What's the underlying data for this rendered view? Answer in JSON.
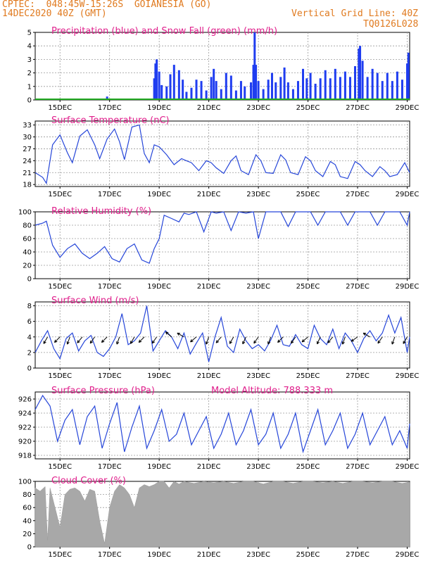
{
  "header": {
    "line1": "CPTEC:  048:45W-15:26S  GOIANESIA (GO)",
    "line2": "14DEC2020 40Z (GMT)",
    "grid_note": "Vertical Grid Line: 40Z",
    "run_id": "TQ0126L028"
  },
  "colors": {
    "header": "#e07a1f",
    "title": "#e0208c",
    "precip": "#1f3df0",
    "snow": "#22aa22",
    "line": "#2646d9",
    "cloud": "#a8a8a8"
  },
  "x_ticks": [
    "15DEC",
    "17DEC",
    "19DEC",
    "21DEC",
    "23DEC",
    "25DEC",
    "27DEC",
    "29DEC"
  ],
  "chart_data": [
    {
      "type": "bar",
      "title": "Precipitation (blue) and Snow Fall (green) (mm/h)",
      "ylim": [
        0,
        5
      ],
      "yticks": [
        0,
        1,
        2,
        3,
        4,
        5
      ],
      "x_start_day": 14.0,
      "x_end_day": 29.1,
      "series": [
        {
          "name": "Precipitation",
          "values": [
            [
              16.9,
              0.25
            ],
            [
              18.8,
              1.6
            ],
            [
              18.85,
              2.7
            ],
            [
              18.9,
              3.0
            ],
            [
              19.0,
              2.1
            ],
            [
              19.1,
              1.1
            ],
            [
              19.3,
              1.0
            ],
            [
              19.45,
              1.9
            ],
            [
              19.6,
              2.6
            ],
            [
              19.8,
              2.2
            ],
            [
              19.95,
              1.5
            ],
            [
              20.1,
              0.6
            ],
            [
              20.3,
              0.9
            ],
            [
              20.5,
              1.5
            ],
            [
              20.7,
              1.4
            ],
            [
              20.9,
              0.7
            ],
            [
              21.1,
              1.7
            ],
            [
              21.2,
              2.3
            ],
            [
              21.3,
              1.4
            ],
            [
              21.5,
              0.8
            ],
            [
              21.7,
              2.0
            ],
            [
              21.9,
              1.8
            ],
            [
              22.1,
              0.7
            ],
            [
              22.3,
              1.4
            ],
            [
              22.45,
              1.0
            ],
            [
              22.7,
              1.3
            ],
            [
              22.8,
              2.6
            ],
            [
              22.85,
              5.0
            ],
            [
              22.9,
              2.6
            ],
            [
              23.0,
              1.4
            ],
            [
              23.2,
              0.8
            ],
            [
              23.4,
              1.5
            ],
            [
              23.55,
              2.0
            ],
            [
              23.7,
              1.3
            ],
            [
              23.9,
              1.7
            ],
            [
              24.05,
              2.4
            ],
            [
              24.2,
              1.3
            ],
            [
              24.4,
              0.8
            ],
            [
              24.6,
              1.4
            ],
            [
              24.8,
              2.3
            ],
            [
              24.95,
              1.6
            ],
            [
              25.1,
              2.0
            ],
            [
              25.3,
              1.2
            ],
            [
              25.5,
              1.6
            ],
            [
              25.7,
              2.2
            ],
            [
              25.9,
              1.6
            ],
            [
              26.1,
              2.3
            ],
            [
              26.3,
              1.7
            ],
            [
              26.5,
              2.1
            ],
            [
              26.7,
              1.7
            ],
            [
              26.9,
              2.5
            ],
            [
              27.05,
              3.8
            ],
            [
              27.1,
              4.0
            ],
            [
              27.2,
              2.9
            ],
            [
              27.4,
              1.7
            ],
            [
              27.6,
              2.3
            ],
            [
              27.8,
              2.0
            ],
            [
              28.0,
              1.4
            ],
            [
              28.2,
              2.0
            ],
            [
              28.4,
              1.4
            ],
            [
              28.6,
              2.1
            ],
            [
              28.8,
              1.5
            ],
            [
              29.0,
              2.7
            ],
            [
              29.05,
              3.5
            ]
          ]
        },
        {
          "name": "Snow Fall",
          "values": [
            [
              14.0,
              0.0
            ],
            [
              29.1,
              0.0
            ]
          ]
        }
      ]
    },
    {
      "type": "line",
      "title": "Surface Temperature (nC)",
      "ylim": [
        17.5,
        34
      ],
      "yticks": [
        18,
        21,
        24,
        27,
        30,
        33
      ],
      "x": [
        14.0,
        14.3,
        14.45,
        14.7,
        15.0,
        15.3,
        15.5,
        15.8,
        16.1,
        16.4,
        16.6,
        16.9,
        17.2,
        17.4,
        17.6,
        17.9,
        18.2,
        18.4,
        18.6,
        18.8,
        19.0,
        19.3,
        19.6,
        19.9,
        20.1,
        20.3,
        20.6,
        20.9,
        21.1,
        21.3,
        21.6,
        21.9,
        22.1,
        22.3,
        22.6,
        22.9,
        23.1,
        23.3,
        23.6,
        23.9,
        24.1,
        24.3,
        24.6,
        24.9,
        25.1,
        25.3,
        25.6,
        25.9,
        26.1,
        26.3,
        26.6,
        26.9,
        27.1,
        27.3,
        27.6,
        27.9,
        28.1,
        28.3,
        28.6,
        28.9,
        29.1
      ],
      "values": [
        21.0,
        19.8,
        18.3,
        28.0,
        30.5,
        26.0,
        23.5,
        30.2,
        31.8,
        28.0,
        24.5,
        29.5,
        32.0,
        28.8,
        24.3,
        32.5,
        33.0,
        25.8,
        23.5,
        28.0,
        27.5,
        25.5,
        23.0,
        24.5,
        24.0,
        23.5,
        21.5,
        24.0,
        23.5,
        22.2,
        20.8,
        24.0,
        25.2,
        21.5,
        20.5,
        25.5,
        24.0,
        21.0,
        20.8,
        25.5,
        24.2,
        21.0,
        20.5,
        25.0,
        24.0,
        21.5,
        20.0,
        23.8,
        23.0,
        20.0,
        19.5,
        23.8,
        23.0,
        21.5,
        20.0,
        22.5,
        21.5,
        20.0,
        20.5,
        23.5,
        21.0
      ]
    },
    {
      "type": "line",
      "title": "Relative Humidity (%)",
      "ylim": [
        0,
        100
      ],
      "yticks": [
        0,
        20,
        40,
        60,
        80,
        100
      ],
      "x": [
        14.0,
        14.3,
        14.45,
        14.7,
        15.0,
        15.3,
        15.6,
        15.9,
        16.2,
        16.5,
        16.8,
        17.1,
        17.4,
        17.7,
        18.0,
        18.3,
        18.6,
        18.8,
        19.0,
        19.2,
        19.5,
        19.8,
        20.0,
        20.2,
        20.5,
        20.8,
        21.1,
        21.3,
        21.6,
        21.9,
        22.2,
        22.5,
        22.8,
        23.0,
        23.3,
        23.6,
        23.9,
        24.2,
        24.5,
        24.8,
        25.1,
        25.4,
        25.7,
        26.0,
        26.3,
        26.6,
        26.9,
        27.2,
        27.5,
        27.8,
        28.1,
        28.4,
        28.7,
        29.0,
        29.1
      ],
      "values": [
        80,
        83,
        86,
        50,
        32,
        45,
        52,
        38,
        30,
        38,
        48,
        30,
        25,
        45,
        52,
        28,
        23,
        45,
        60,
        95,
        90,
        85,
        98,
        96,
        100,
        70,
        100,
        98,
        100,
        72,
        100,
        98,
        100,
        60,
        100,
        100,
        100,
        78,
        100,
        100,
        100,
        80,
        100,
        100,
        100,
        80,
        100,
        100,
        100,
        80,
        100,
        100,
        100,
        80,
        100
      ]
    },
    {
      "type": "line",
      "title": "Surface Wind (m/s)",
      "ylim": [
        0,
        8.5
      ],
      "yticks": [
        0,
        2,
        4,
        6,
        8
      ],
      "x": [
        14.0,
        14.25,
        14.5,
        14.75,
        15.0,
        15.25,
        15.5,
        15.75,
        16.0,
        16.25,
        16.5,
        16.75,
        17.0,
        17.25,
        17.5,
        17.75,
        18.0,
        18.25,
        18.5,
        18.75,
        19.0,
        19.25,
        19.5,
        19.75,
        20.0,
        20.25,
        20.5,
        20.75,
        21.0,
        21.25,
        21.5,
        21.75,
        22.0,
        22.25,
        22.5,
        22.75,
        23.0,
        23.25,
        23.5,
        23.75,
        24.0,
        24.25,
        24.5,
        24.75,
        25.0,
        25.25,
        25.5,
        25.75,
        26.0,
        26.25,
        26.5,
        26.75,
        27.0,
        27.25,
        27.5,
        27.75,
        28.0,
        28.25,
        28.5,
        28.75,
        29.0,
        29.1
      ],
      "values": [
        2.0,
        3.5,
        4.8,
        2.5,
        1.2,
        3.8,
        4.5,
        2.2,
        3.5,
        4.2,
        2.0,
        1.5,
        2.5,
        4.0,
        7.0,
        3.0,
        3.5,
        4.5,
        8.0,
        2.2,
        3.5,
        4.8,
        4.0,
        2.5,
        4.5,
        1.8,
        3.2,
        4.5,
        0.8,
        4.0,
        6.5,
        2.8,
        2.0,
        5.0,
        3.5,
        2.5,
        3.0,
        2.2,
        3.6,
        5.5,
        3.0,
        2.8,
        4.3,
        3.0,
        2.5,
        5.5,
        3.8,
        3.0,
        5.0,
        2.5,
        4.5,
        3.5,
        2.0,
        3.8,
        4.8,
        3.5,
        4.5,
        6.8,
        4.5,
        6.5,
        2.0,
        4.0
      ],
      "arrows": [
        [
          14.5,
          210
        ],
        [
          15.0,
          225
        ],
        [
          15.4,
          200
        ],
        [
          15.9,
          220
        ],
        [
          16.4,
          215
        ],
        [
          16.9,
          225
        ],
        [
          17.4,
          200
        ],
        [
          18.0,
          210
        ],
        [
          18.4,
          225
        ],
        [
          18.9,
          215
        ],
        [
          19.5,
          310
        ],
        [
          20.0,
          300
        ],
        [
          20.5,
          230
        ],
        [
          21.0,
          200
        ],
        [
          21.5,
          220
        ],
        [
          22.0,
          210
        ],
        [
          22.5,
          205
        ],
        [
          23.0,
          215
        ],
        [
          23.5,
          200
        ],
        [
          24.0,
          225
        ],
        [
          24.5,
          215
        ],
        [
          25.0,
          230
        ],
        [
          25.5,
          205
        ],
        [
          26.0,
          220
        ],
        [
          26.5,
          200
        ],
        [
          27.0,
          235
        ],
        [
          27.5,
          300
        ],
        [
          28.0,
          215
        ],
        [
          28.5,
          200
        ],
        [
          29.0,
          210
        ]
      ]
    },
    {
      "type": "line",
      "title": "Surface Pressure (hPa)",
      "annotation": "Model Altitude: 788.333 m",
      "ylim": [
        917.5,
        927
      ],
      "yticks": [
        918,
        920,
        922,
        924,
        926
      ],
      "x": [
        14.0,
        14.3,
        14.6,
        14.9,
        15.2,
        15.5,
        15.8,
        16.1,
        16.4,
        16.7,
        17.0,
        17.3,
        17.6,
        17.9,
        18.2,
        18.5,
        18.8,
        19.1,
        19.4,
        19.7,
        20.0,
        20.3,
        20.6,
        20.9,
        21.2,
        21.5,
        21.8,
        22.1,
        22.4,
        22.7,
        23.0,
        23.3,
        23.6,
        23.9,
        24.2,
        24.5,
        24.8,
        25.1,
        25.4,
        25.7,
        26.0,
        26.3,
        26.6,
        26.9,
        27.2,
        27.5,
        27.8,
        28.1,
        28.4,
        28.7,
        29.0,
        29.1
      ],
      "values": [
        924.5,
        926.5,
        925.0,
        920.0,
        923.0,
        924.5,
        919.5,
        923.5,
        925.0,
        919.0,
        922.5,
        925.5,
        918.5,
        922.0,
        925.0,
        919.0,
        921.5,
        924.5,
        920.0,
        921.0,
        924.0,
        919.5,
        921.5,
        923.5,
        919.0,
        921.0,
        924.0,
        919.5,
        921.5,
        924.5,
        919.5,
        921.0,
        924.0,
        919.0,
        921.0,
        924.0,
        918.5,
        921.5,
        924.5,
        919.5,
        921.5,
        924.0,
        919.0,
        921.0,
        924.0,
        919.5,
        921.5,
        923.5,
        919.5,
        921.5,
        919.0,
        922.5
      ]
    },
    {
      "type": "area",
      "title": "Cloud Cover (%)",
      "ylim": [
        0,
        100
      ],
      "yticks": [
        0,
        20,
        40,
        60,
        80,
        100
      ],
      "x": [
        14.0,
        14.2,
        14.4,
        14.5,
        14.6,
        14.8,
        15.0,
        15.2,
        15.4,
        15.6,
        15.8,
        16.0,
        16.2,
        16.4,
        16.6,
        16.8,
        17.0,
        17.2,
        17.4,
        17.6,
        17.8,
        18.0,
        18.2,
        18.4,
        18.6,
        18.8,
        19.0,
        19.2,
        19.4,
        19.6,
        19.8,
        20.0,
        20.4,
        20.8,
        21.2,
        21.6,
        22.0,
        22.4,
        22.8,
        23.2,
        23.6,
        24.0,
        24.4,
        24.8,
        25.2,
        25.6,
        26.0,
        26.4,
        26.8,
        27.2,
        27.6,
        28.0,
        28.4,
        28.8,
        29.1
      ],
      "values": [
        90,
        85,
        92,
        10,
        90,
        60,
        30,
        80,
        88,
        90,
        85,
        70,
        88,
        85,
        40,
        5,
        60,
        85,
        95,
        90,
        80,
        60,
        90,
        95,
        92,
        95,
        100,
        100,
        90,
        100,
        96,
        100,
        97,
        100,
        98,
        100,
        97,
        100,
        100,
        96,
        100,
        100,
        97,
        100,
        100,
        98,
        100,
        97,
        100,
        100,
        98,
        100,
        100,
        97,
        99
      ]
    }
  ]
}
